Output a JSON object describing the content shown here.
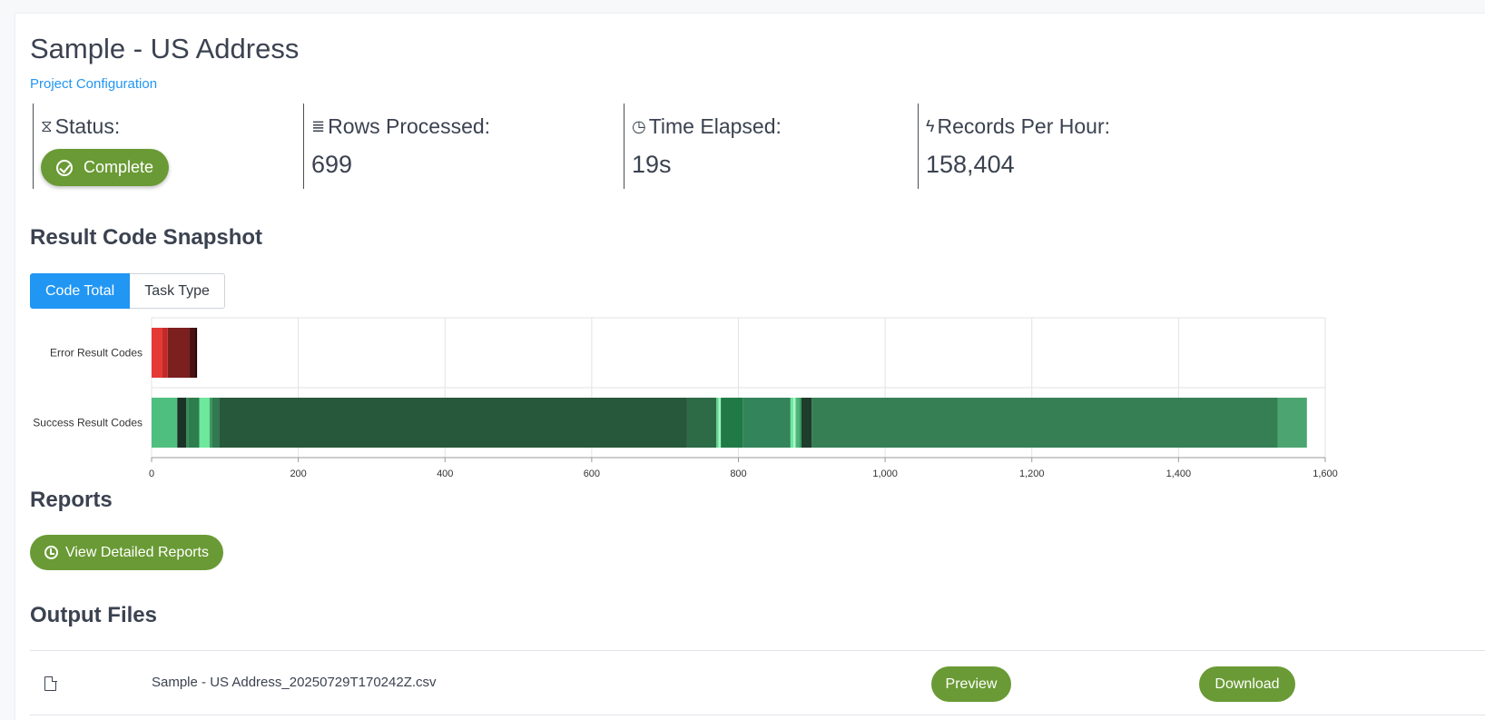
{
  "page": {
    "title": "Sample - US Address",
    "config_link": "Project Configuration"
  },
  "stats": {
    "status": {
      "label": "Status:",
      "value": "Complete",
      "icon": "hourglass-icon"
    },
    "rows": {
      "label": "Rows Processed:",
      "value": "699",
      "icon": "list-icon"
    },
    "time": {
      "label": "Time Elapsed:",
      "value": "19s",
      "icon": "clock-icon"
    },
    "rate": {
      "label": "Records Per Hour:",
      "value": "158,404",
      "icon": "bolt-icon"
    }
  },
  "snapshot": {
    "heading": "Result Code Snapshot",
    "tabs": [
      {
        "label": "Code Total",
        "active": true
      },
      {
        "label": "Task Type",
        "active": false
      }
    ]
  },
  "chart_data": {
    "type": "bar",
    "orientation": "horizontal",
    "stacked": true,
    "categories": [
      "Error Result Codes",
      "Success Result Codes"
    ],
    "xlim": [
      0,
      1600
    ],
    "x_ticks": [
      "0",
      "200",
      "400",
      "600",
      "800",
      "1,000",
      "1,200",
      "1,400",
      "1,600"
    ],
    "grid": true,
    "legend": "none",
    "segments": [
      [
        {
          "value": 14,
          "color": "#e53935"
        },
        {
          "value": 8,
          "color": "#c62828"
        },
        {
          "value": 30,
          "color": "#7b1f1f"
        },
        {
          "value": 8,
          "color": "#4a1111"
        },
        {
          "value": 2,
          "color": "#1a0505"
        }
      ],
      [
        {
          "value": 35,
          "color": "#4fbf7f"
        },
        {
          "value": 12,
          "color": "#1b3326"
        },
        {
          "value": 3,
          "color": "#3a8a5a"
        },
        {
          "value": 15,
          "color": "#2e7d4f"
        },
        {
          "value": 14,
          "color": "#6ee89c"
        },
        {
          "value": 3,
          "color": "#3a9a62"
        },
        {
          "value": 10,
          "color": "#2f7a4e"
        },
        {
          "value": 638,
          "color": "#27583b"
        },
        {
          "value": 40,
          "color": "#2d6b47"
        },
        {
          "value": 3,
          "color": "#5fd48c"
        },
        {
          "value": 3,
          "color": "#9ff5c0"
        },
        {
          "value": 30,
          "color": "#1f7a46"
        },
        {
          "value": 65,
          "color": "#33845a"
        },
        {
          "value": 4,
          "color": "#6ee89c"
        },
        {
          "value": 3,
          "color": "#a8f5c8"
        },
        {
          "value": 5,
          "color": "#4bb57a"
        },
        {
          "value": 3,
          "color": "#3a9a62"
        },
        {
          "value": 14,
          "color": "#1e3d2b"
        },
        {
          "value": 635,
          "color": "#367f55"
        },
        {
          "value": 40,
          "color": "#4ca570"
        }
      ]
    ]
  },
  "reports": {
    "heading": "Reports",
    "button": "View Detailed Reports"
  },
  "output": {
    "heading": "Output Files",
    "files": [
      {
        "name": "Sample - US Address_20250729T170242Z.csv",
        "preview": "Preview",
        "download": "Download"
      }
    ]
  }
}
